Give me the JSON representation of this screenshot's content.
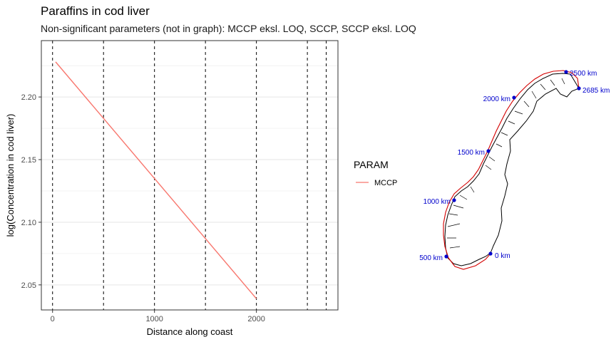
{
  "chart_data": {
    "type": "line",
    "title": "Paraffins in cod liver",
    "subtitle": "Non-significant parameters (not in graph): MCCP eksl. LOQ, SCCP, SCCP eksl. LOQ",
    "xlabel": "Distance along coast",
    "ylabel": "log(Concentration in cod liver)",
    "xlim": [
      -110,
      2800
    ],
    "ylim": [
      2.03,
      2.245
    ],
    "x_ticks": [
      0,
      1000,
      2000
    ],
    "x_tick_labels": [
      "0",
      "1000",
      "2000"
    ],
    "y_ticks": [
      2.05,
      2.1,
      2.15,
      2.2
    ],
    "y_tick_labels": [
      "2.05",
      "2.10",
      "2.15",
      "2.20"
    ],
    "grid": true,
    "legend": {
      "title": "PARAM",
      "placement": "right"
    },
    "series": [
      {
        "name": "MCCP",
        "color": "#F8766D",
        "x": [
          30,
          2000
        ],
        "y": [
          2.228,
          2.039
        ]
      }
    ],
    "vlines_x": [
      0,
      500,
      1000,
      1500,
      2000,
      2500,
      2685
    ]
  },
  "map": {
    "coast_color": "#000000",
    "route_color": "#d40000",
    "marker_color": "#0000cc",
    "markers": [
      "0 km",
      "500 km",
      "1000 km",
      "1500 km",
      "2000 km",
      "2500 km",
      "2685 km"
    ]
  }
}
